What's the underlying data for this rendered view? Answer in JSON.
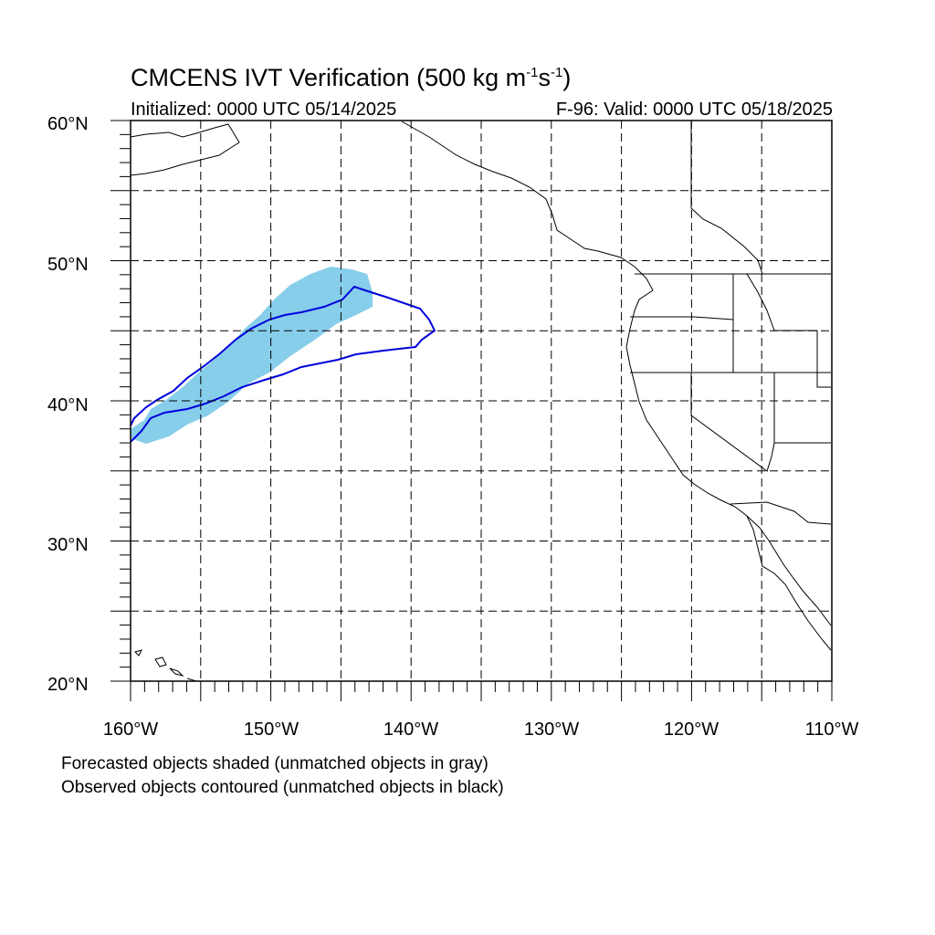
{
  "title": {
    "main": "CMCENS IVT Verification (500 kg m",
    "sup1": "-1",
    "mid": "s",
    "sup2": "-1",
    "close": ")"
  },
  "initialized": "Initialized: 0000 UTC 05/14/2025",
  "valid": "F-96: Valid: 0000 UTC 05/18/2025",
  "map": {
    "lon_range": [
      -160,
      -110
    ],
    "lat_range": [
      20,
      60
    ],
    "lon_labels": [
      "160°W",
      "150°W",
      "140°W",
      "130°W",
      "120°W",
      "110°W"
    ],
    "lat_labels": [
      "60°N",
      "50°N",
      "40°N",
      "30°N",
      "20°N"
    ],
    "gridlines": "dashed every 5°",
    "forecast_color": "#87ceeb",
    "observed_color": "#0000dd"
  },
  "captions": {
    "forecast": "Forecasted objects shaded (unmatched objects in gray)",
    "observed": "Observed objects contoured (unmatched objects in black)"
  }
}
